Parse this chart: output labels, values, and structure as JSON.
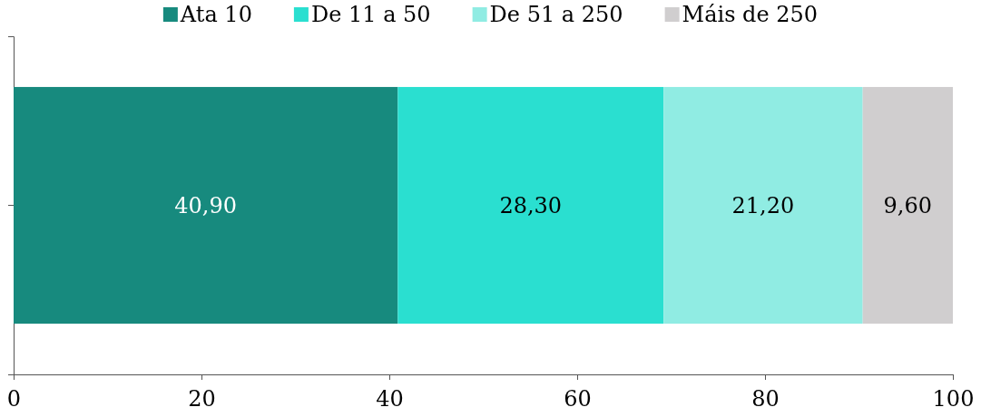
{
  "chart_data": {
    "type": "bar",
    "orientation": "horizontal",
    "stacked": true,
    "categories": [
      null
    ],
    "series": [
      {
        "name": "Ata 10",
        "color": "#178a7e",
        "values": [
          40.9
        ],
        "value_labels": [
          "40,90"
        ]
      },
      {
        "name": "De 11 a 50",
        "color": "#2adfd0",
        "values": [
          28.3
        ],
        "value_labels": [
          "28,30"
        ]
      },
      {
        "name": "De 51 a 250",
        "color": "#90ece3",
        "values": [
          21.2
        ],
        "value_labels": [
          "21,20"
        ]
      },
      {
        "name": "Máis de 250",
        "color": "#d0cecf",
        "values": [
          9.6
        ],
        "value_labels": [
          "9,60"
        ]
      }
    ],
    "xlim": [
      0,
      100
    ],
    "xticks": [
      0,
      20,
      40,
      60,
      80,
      100
    ],
    "grid": false,
    "legend": "top"
  }
}
